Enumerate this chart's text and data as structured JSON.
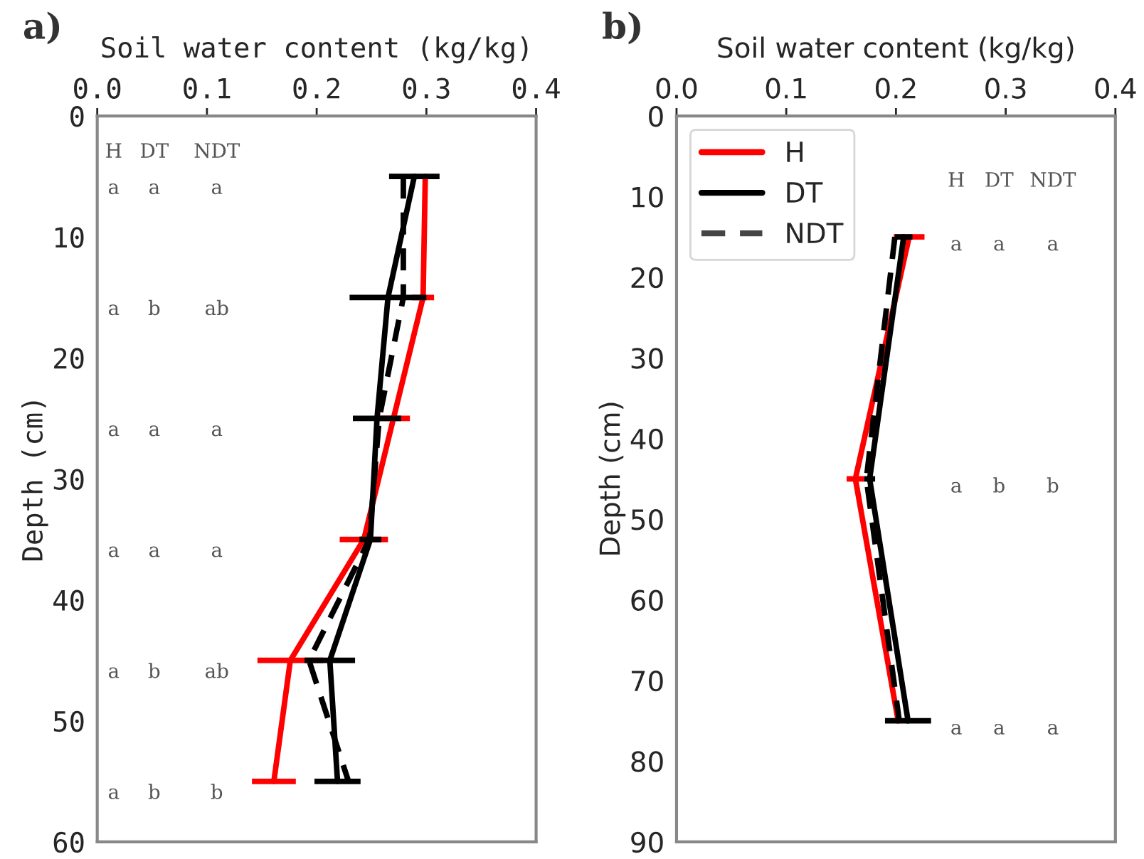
{
  "chart_data": [
    {
      "type": "line",
      "orientation": "horizontal",
      "xlabel": "Soil water content (kg/kg)",
      "ylabel": "Depth (cm)",
      "xlim": [
        0,
        0.4
      ],
      "ylim": [
        60,
        0
      ],
      "xticks": [
        {
          "value": 0,
          "label": "0.0"
        },
        {
          "value": 0.1,
          "label": "0.1"
        },
        {
          "value": 0.2,
          "label": "0.2"
        },
        {
          "value": 0.3,
          "label": "0.3"
        },
        {
          "value": 0.4,
          "label": "0.4"
        }
      ],
      "yticks": [
        0,
        10,
        20,
        30,
        40,
        50,
        60
      ],
      "grid": false,
      "legend": false,
      "series": [
        {
          "color": "#ff0000",
          "line_style": "solid",
          "x": [
            5,
            15,
            25,
            35,
            45,
            55
          ],
          "values": [
            0.299,
            0.297,
            0.27,
            0.243,
            0.176,
            0.161
          ],
          "errors": [
            null,
            0.01,
            0.015,
            0.022,
            0.03,
            0.02
          ]
        },
        {
          "color": "#000000",
          "line_style": "solid",
          "x": [
            5,
            15,
            25,
            35,
            45,
            55
          ],
          "values": [
            0.289,
            0.265,
            0.255,
            0.249,
            0.212,
            0.219
          ],
          "errors": [
            0.023,
            0.035,
            0.022,
            0.01,
            0.023,
            0.021
          ]
        },
        {
          "color": "#000000",
          "line_style": "dashed",
          "x": [
            5,
            15,
            25,
            35,
            45,
            55
          ],
          "values": [
            0.279,
            0.279,
            0.257,
            0.248,
            0.193,
            0.229
          ]
        }
      ],
      "annotations": [
        "a)",
        "H",
        "DT",
        "NDT",
        "a",
        "a",
        "a",
        "a",
        "b",
        "ab",
        "a",
        "a",
        "a",
        "a",
        "a",
        "a",
        "a",
        "b",
        "ab",
        "a",
        "b",
        "b"
      ]
    },
    {
      "type": "line",
      "orientation": "horizontal",
      "xlabel": "Soil water content (kg/kg)",
      "ylabel": "Depth (cm)",
      "xlim": [
        0,
        0.4
      ],
      "ylim": [
        90,
        0
      ],
      "xticks": [
        {
          "value": 0,
          "label": "0.0"
        },
        {
          "value": 0.1,
          "label": "0.1"
        },
        {
          "value": 0.2,
          "label": "0.2"
        },
        {
          "value": 0.3,
          "label": "0.3"
        },
        {
          "value": 0.4,
          "label": "0.4"
        }
      ],
      "yticks": [
        0,
        10,
        20,
        30,
        40,
        50,
        60,
        70,
        80,
        90
      ],
      "grid": false,
      "legend": "top left",
      "series": [
        {
          "name": "H",
          "color": "#ff0000",
          "line_style": "solid",
          "x": [
            15,
            45,
            75
          ],
          "values": [
            0.212,
            0.163,
            0.202
          ],
          "errors": [
            0.014,
            0.008,
            null
          ]
        },
        {
          "name": "DT",
          "color": "#000000",
          "line_style": "solid",
          "x": [
            15,
            45,
            75
          ],
          "values": [
            0.207,
            0.176,
            0.211
          ],
          "errors": [
            0.008,
            0.005,
            0.021
          ]
        },
        {
          "name": "NDT",
          "color": "#000000",
          "line_style": "dashed",
          "x": [
            15,
            45,
            75
          ],
          "values": [
            0.199,
            0.173,
            0.203
          ]
        }
      ],
      "annotations": [
        "b)",
        "H",
        "DT",
        "NDT",
        "a",
        "a",
        "a",
        "a",
        "b",
        "b",
        "a",
        "a",
        "a"
      ]
    }
  ]
}
